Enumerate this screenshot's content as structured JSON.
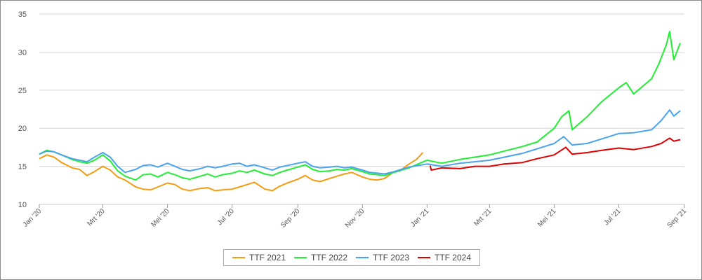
{
  "chart_data": {
    "type": "line",
    "title": "",
    "xlabel": "",
    "ylabel": "",
    "ylim": [
      10,
      35
    ],
    "yticks": [
      10,
      15,
      20,
      25,
      30,
      35
    ],
    "x_ticks": [
      "Jan '20",
      "Mrt '20",
      "Mei '20",
      "Jul '20",
      "Sep '20",
      "Nov '20",
      "Jan '21",
      "Mrt '21",
      "Mei '21",
      "Jul '21",
      "Sep '21"
    ],
    "x_tick_dates": [
      "2020-01-01",
      "2020-03-01",
      "2020-05-01",
      "2020-07-01",
      "2020-09-01",
      "2020-11-01",
      "2021-01-01",
      "2021-03-01",
      "2021-05-01",
      "2021-07-01",
      "2021-09-01"
    ],
    "xlim": [
      "2020-01-01",
      "2021-09-01"
    ],
    "grid": true,
    "legend_position": "bottom",
    "series": [
      {
        "name": "TTF 2021",
        "color": "#f39c12",
        "points": [
          [
            "2020-01-01",
            16.0
          ],
          [
            "2020-01-08",
            16.5
          ],
          [
            "2020-01-15",
            16.2
          ],
          [
            "2020-01-22",
            15.5
          ],
          [
            "2020-02-01",
            14.8
          ],
          [
            "2020-02-08",
            14.6
          ],
          [
            "2020-02-15",
            13.8
          ],
          [
            "2020-02-22",
            14.3
          ],
          [
            "2020-03-01",
            15.0
          ],
          [
            "2020-03-08",
            14.5
          ],
          [
            "2020-03-15",
            13.6
          ],
          [
            "2020-03-22",
            13.2
          ],
          [
            "2020-04-01",
            12.3
          ],
          [
            "2020-04-08",
            12.0
          ],
          [
            "2020-04-15",
            11.9
          ],
          [
            "2020-04-22",
            12.3
          ],
          [
            "2020-05-01",
            12.8
          ],
          [
            "2020-05-08",
            12.6
          ],
          [
            "2020-05-15",
            12.0
          ],
          [
            "2020-05-22",
            11.8
          ],
          [
            "2020-06-01",
            12.1
          ],
          [
            "2020-06-08",
            12.2
          ],
          [
            "2020-06-15",
            11.8
          ],
          [
            "2020-06-22",
            11.9
          ],
          [
            "2020-07-01",
            12.0
          ],
          [
            "2020-07-08",
            12.3
          ],
          [
            "2020-07-15",
            12.6
          ],
          [
            "2020-07-22",
            12.9
          ],
          [
            "2020-08-01",
            12.0
          ],
          [
            "2020-08-08",
            11.8
          ],
          [
            "2020-08-15",
            12.4
          ],
          [
            "2020-08-22",
            12.8
          ],
          [
            "2020-09-01",
            13.3
          ],
          [
            "2020-09-08",
            13.8
          ],
          [
            "2020-09-15",
            13.2
          ],
          [
            "2020-09-22",
            13.0
          ],
          [
            "2020-10-01",
            13.4
          ],
          [
            "2020-10-08",
            13.7
          ],
          [
            "2020-10-15",
            14.0
          ],
          [
            "2020-10-22",
            14.2
          ],
          [
            "2020-11-01",
            13.6
          ],
          [
            "2020-11-08",
            13.3
          ],
          [
            "2020-11-15",
            13.2
          ],
          [
            "2020-11-22",
            13.4
          ],
          [
            "2020-12-01",
            14.3
          ],
          [
            "2020-12-08",
            14.6
          ],
          [
            "2020-12-15",
            15.3
          ],
          [
            "2020-12-22",
            15.9
          ],
          [
            "2020-12-28",
            16.8
          ]
        ]
      },
      {
        "name": "TTF 2022",
        "color": "#22ee33",
        "points": [
          [
            "2020-01-01",
            16.6
          ],
          [
            "2020-01-08",
            17.1
          ],
          [
            "2020-01-15",
            16.9
          ],
          [
            "2020-01-22",
            16.5
          ],
          [
            "2020-02-01",
            15.9
          ],
          [
            "2020-02-08",
            15.6
          ],
          [
            "2020-02-15",
            15.4
          ],
          [
            "2020-02-22",
            15.8
          ],
          [
            "2020-03-01",
            16.5
          ],
          [
            "2020-03-08",
            15.7
          ],
          [
            "2020-03-15",
            14.4
          ],
          [
            "2020-03-22",
            13.7
          ],
          [
            "2020-04-01",
            13.2
          ],
          [
            "2020-04-08",
            13.9
          ],
          [
            "2020-04-15",
            14.0
          ],
          [
            "2020-04-22",
            13.6
          ],
          [
            "2020-05-01",
            14.2
          ],
          [
            "2020-05-08",
            13.9
          ],
          [
            "2020-05-15",
            13.5
          ],
          [
            "2020-05-22",
            13.3
          ],
          [
            "2020-06-01",
            13.7
          ],
          [
            "2020-06-08",
            14.0
          ],
          [
            "2020-06-15",
            13.6
          ],
          [
            "2020-06-22",
            13.9
          ],
          [
            "2020-07-01",
            14.1
          ],
          [
            "2020-07-08",
            14.4
          ],
          [
            "2020-07-15",
            14.2
          ],
          [
            "2020-07-22",
            14.5
          ],
          [
            "2020-08-01",
            14.0
          ],
          [
            "2020-08-08",
            13.8
          ],
          [
            "2020-08-15",
            14.2
          ],
          [
            "2020-08-22",
            14.5
          ],
          [
            "2020-09-01",
            14.9
          ],
          [
            "2020-09-08",
            15.2
          ],
          [
            "2020-09-15",
            14.6
          ],
          [
            "2020-09-22",
            14.3
          ],
          [
            "2020-10-01",
            14.4
          ],
          [
            "2020-10-08",
            14.6
          ],
          [
            "2020-10-15",
            14.5
          ],
          [
            "2020-10-22",
            14.7
          ],
          [
            "2020-11-01",
            14.3
          ],
          [
            "2020-11-08",
            14.0
          ],
          [
            "2020-11-15",
            13.9
          ],
          [
            "2020-11-22",
            13.8
          ],
          [
            "2020-12-01",
            14.2
          ],
          [
            "2020-12-15",
            14.8
          ],
          [
            "2021-01-01",
            15.8
          ],
          [
            "2021-01-15",
            15.4
          ],
          [
            "2021-02-01",
            15.9
          ],
          [
            "2021-02-15",
            16.2
          ],
          [
            "2021-03-01",
            16.5
          ],
          [
            "2021-03-15",
            17.0
          ],
          [
            "2021-04-01",
            17.6
          ],
          [
            "2021-04-15",
            18.2
          ],
          [
            "2021-05-01",
            20.0
          ],
          [
            "2021-05-08",
            21.5
          ],
          [
            "2021-05-15",
            22.3
          ],
          [
            "2021-05-18",
            19.8
          ],
          [
            "2021-06-01",
            21.5
          ],
          [
            "2021-06-15",
            23.5
          ],
          [
            "2021-07-01",
            25.3
          ],
          [
            "2021-07-08",
            26.0
          ],
          [
            "2021-07-15",
            24.5
          ],
          [
            "2021-08-01",
            26.5
          ],
          [
            "2021-08-08",
            28.5
          ],
          [
            "2021-08-15",
            31.0
          ],
          [
            "2021-08-18",
            32.7
          ],
          [
            "2021-08-22",
            29.0
          ],
          [
            "2021-08-28",
            31.2
          ]
        ]
      },
      {
        "name": "TTF 2023",
        "color": "#4aa3ee",
        "points": [
          [
            "2020-01-01",
            16.6
          ],
          [
            "2020-01-08",
            17.0
          ],
          [
            "2020-01-15",
            16.9
          ],
          [
            "2020-01-22",
            16.5
          ],
          [
            "2020-02-01",
            16.0
          ],
          [
            "2020-02-08",
            15.8
          ],
          [
            "2020-02-15",
            15.6
          ],
          [
            "2020-02-22",
            16.2
          ],
          [
            "2020-03-01",
            16.8
          ],
          [
            "2020-03-08",
            16.2
          ],
          [
            "2020-03-15",
            15.0
          ],
          [
            "2020-03-22",
            14.2
          ],
          [
            "2020-04-01",
            14.6
          ],
          [
            "2020-04-08",
            15.1
          ],
          [
            "2020-04-15",
            15.2
          ],
          [
            "2020-04-22",
            14.9
          ],
          [
            "2020-05-01",
            15.4
          ],
          [
            "2020-05-08",
            15.0
          ],
          [
            "2020-05-15",
            14.6
          ],
          [
            "2020-05-22",
            14.4
          ],
          [
            "2020-06-01",
            14.7
          ],
          [
            "2020-06-08",
            15.0
          ],
          [
            "2020-06-15",
            14.8
          ],
          [
            "2020-06-22",
            15.0
          ],
          [
            "2020-07-01",
            15.3
          ],
          [
            "2020-07-08",
            15.4
          ],
          [
            "2020-07-15",
            15.0
          ],
          [
            "2020-07-22",
            15.2
          ],
          [
            "2020-08-01",
            14.8
          ],
          [
            "2020-08-08",
            14.5
          ],
          [
            "2020-08-15",
            14.9
          ],
          [
            "2020-08-22",
            15.1
          ],
          [
            "2020-09-01",
            15.4
          ],
          [
            "2020-09-08",
            15.6
          ],
          [
            "2020-09-15",
            15.0
          ],
          [
            "2020-09-22",
            14.8
          ],
          [
            "2020-10-01",
            14.9
          ],
          [
            "2020-10-08",
            15.0
          ],
          [
            "2020-10-15",
            14.8
          ],
          [
            "2020-10-22",
            14.9
          ],
          [
            "2020-11-01",
            14.5
          ],
          [
            "2020-11-08",
            14.2
          ],
          [
            "2020-11-15",
            14.1
          ],
          [
            "2020-11-22",
            14.0
          ],
          [
            "2020-12-01",
            14.3
          ],
          [
            "2020-12-15",
            14.9
          ],
          [
            "2021-01-01",
            15.3
          ],
          [
            "2021-01-15",
            15.0
          ],
          [
            "2021-02-01",
            15.4
          ],
          [
            "2021-02-15",
            15.6
          ],
          [
            "2021-03-01",
            15.8
          ],
          [
            "2021-03-15",
            16.2
          ],
          [
            "2021-04-01",
            16.7
          ],
          [
            "2021-04-15",
            17.3
          ],
          [
            "2021-05-01",
            18.0
          ],
          [
            "2021-05-10",
            18.9
          ],
          [
            "2021-05-18",
            17.8
          ],
          [
            "2021-06-01",
            18.0
          ],
          [
            "2021-06-15",
            18.6
          ],
          [
            "2021-07-01",
            19.3
          ],
          [
            "2021-07-15",
            19.4
          ],
          [
            "2021-08-01",
            19.8
          ],
          [
            "2021-08-10",
            21.0
          ],
          [
            "2021-08-18",
            22.4
          ],
          [
            "2021-08-22",
            21.6
          ],
          [
            "2021-08-28",
            22.3
          ]
        ]
      },
      {
        "name": "TTF 2024",
        "color": "#e00000",
        "points": [
          [
            "2021-01-04",
            15.1
          ],
          [
            "2021-01-05",
            14.5
          ],
          [
            "2021-01-15",
            14.8
          ],
          [
            "2021-02-01",
            14.7
          ],
          [
            "2021-02-15",
            15.0
          ],
          [
            "2021-03-01",
            15.0
          ],
          [
            "2021-03-15",
            15.3
          ],
          [
            "2021-04-01",
            15.5
          ],
          [
            "2021-04-15",
            16.0
          ],
          [
            "2021-05-01",
            16.5
          ],
          [
            "2021-05-12",
            17.5
          ],
          [
            "2021-05-18",
            16.6
          ],
          [
            "2021-06-01",
            16.8
          ],
          [
            "2021-06-15",
            17.1
          ],
          [
            "2021-07-01",
            17.4
          ],
          [
            "2021-07-15",
            17.2
          ],
          [
            "2021-08-01",
            17.6
          ],
          [
            "2021-08-10",
            18.0
          ],
          [
            "2021-08-18",
            18.7
          ],
          [
            "2021-08-22",
            18.3
          ],
          [
            "2021-08-28",
            18.5
          ]
        ]
      }
    ]
  }
}
